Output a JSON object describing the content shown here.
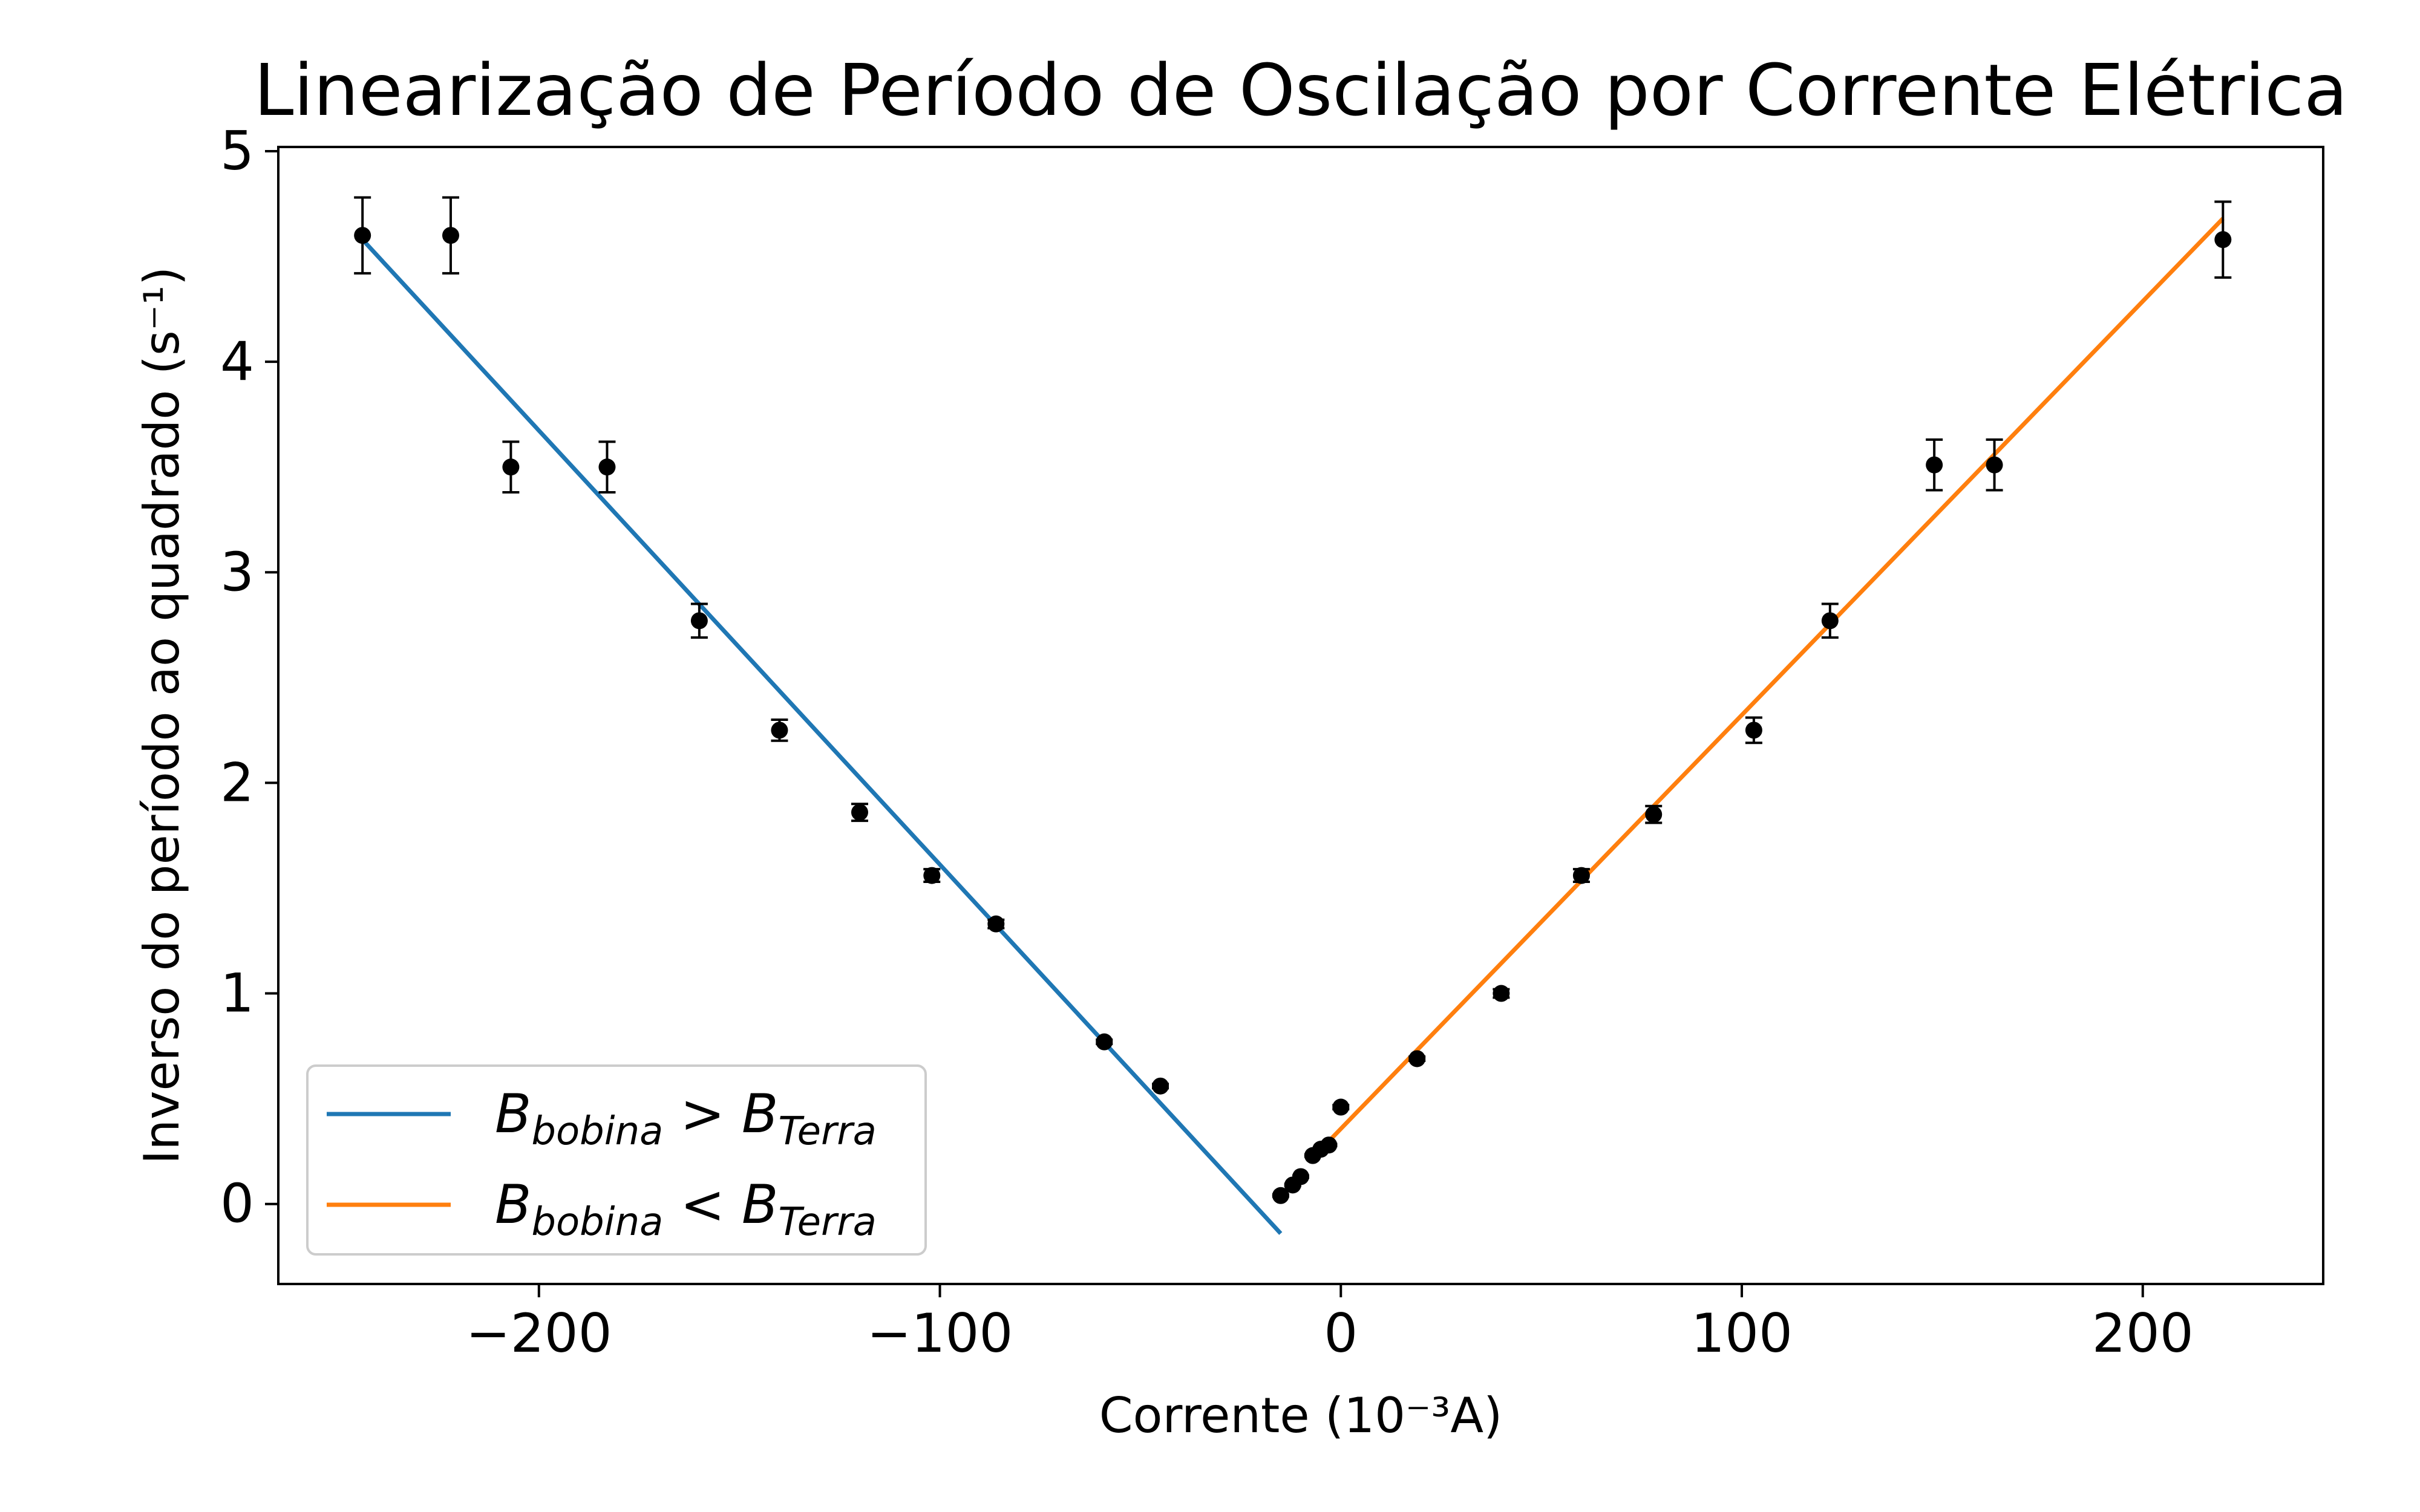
{
  "chart_data": {
    "type": "scatter",
    "title": "Linearização de Período de Oscilação por Corrente Elétrica",
    "xlabel": "Corrente (10⁻³A)",
    "ylabel": "Inverso do período ao quadrado (s⁻¹)",
    "xlim": [
      -265,
      245
    ],
    "ylim": [
      -0.38,
      5.02
    ],
    "xticks": [
      -200,
      -100,
      0,
      100,
      200
    ],
    "xtick_labels": [
      "−200",
      "−100",
      "0",
      "100",
      "200"
    ],
    "yticks": [
      0,
      1,
      2,
      3,
      4,
      5
    ],
    "ytick_labels": [
      "0",
      "1",
      "2",
      "3",
      "4",
      "5"
    ],
    "grid": false,
    "legend_position": "lower-left",
    "points": [
      {
        "x": -244,
        "y": 4.6,
        "err": 0.18
      },
      {
        "x": -222,
        "y": 4.6,
        "err": 0.18
      },
      {
        "x": -207,
        "y": 3.5,
        "err": 0.12
      },
      {
        "x": -183,
        "y": 3.5,
        "err": 0.12
      },
      {
        "x": -160,
        "y": 2.77,
        "err": 0.08
      },
      {
        "x": -140,
        "y": 2.25,
        "err": 0.05
      },
      {
        "x": -120,
        "y": 1.86,
        "err": 0.04
      },
      {
        "x": -102,
        "y": 1.56,
        "err": 0.03
      },
      {
        "x": -86,
        "y": 1.33,
        "err": 0.02
      },
      {
        "x": -59,
        "y": 0.77,
        "err": 0.01
      },
      {
        "x": -45,
        "y": 0.56,
        "err": 0.01
      },
      {
        "x": -15,
        "y": 0.04,
        "err": 0.005
      },
      {
        "x": -12,
        "y": 0.09,
        "err": 0.005
      },
      {
        "x": -10,
        "y": 0.13,
        "err": 0.005
      },
      {
        "x": -7,
        "y": 0.23,
        "err": 0.005
      },
      {
        "x": -5,
        "y": 0.26,
        "err": 0.005
      },
      {
        "x": -3,
        "y": 0.28,
        "err": 0.005
      },
      {
        "x": 0,
        "y": 0.46,
        "err": 0.01
      },
      {
        "x": 19,
        "y": 0.69,
        "err": 0.01
      },
      {
        "x": 40,
        "y": 1.0,
        "err": 0.02
      },
      {
        "x": 60,
        "y": 1.56,
        "err": 0.03
      },
      {
        "x": 78,
        "y": 1.85,
        "err": 0.04
      },
      {
        "x": 103,
        "y": 2.25,
        "err": 0.06
      },
      {
        "x": 122,
        "y": 2.77,
        "err": 0.08
      },
      {
        "x": 148,
        "y": 3.51,
        "err": 0.12
      },
      {
        "x": 163,
        "y": 3.51,
        "err": 0.12
      },
      {
        "x": 220,
        "y": 4.58,
        "err": 0.18
      }
    ],
    "series": [
      {
        "name": "B_bobina > B_Terra",
        "color": "#1f77b4",
        "x": [
          -244,
          -15
        ],
        "y": [
          4.58,
          -0.14
        ]
      },
      {
        "name": "B_bobina < B_Terra",
        "color": "#ff7f0e",
        "x": [
          -8,
          220
        ],
        "y": [
          0.2,
          4.68
        ]
      }
    ],
    "legend": [
      {
        "base": "B",
        "sub1": "bobina",
        "op": ">",
        "base2": "B",
        "sub2": "Terra",
        "color": "#1f77b4"
      },
      {
        "base": "B",
        "sub1": "bobina",
        "op": "<",
        "base2": "B",
        "sub2": "Terra",
        "color": "#ff7f0e"
      }
    ],
    "colors": {
      "points": "#000000",
      "axes": "#000000"
    }
  }
}
